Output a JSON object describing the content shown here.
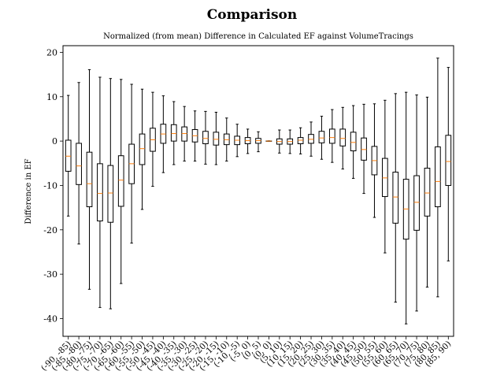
{
  "chart_data": {
    "type": "box",
    "title": "Comparison",
    "subtitle": "Normalized (from mean) Difference in Calculated EF against VolumeTracings",
    "xlabel": "",
    "ylabel": "Difference in EF",
    "ylim": [
      -44,
      21.5
    ],
    "yticks": [
      20,
      10,
      0,
      -10,
      -20,
      -30,
      -40
    ],
    "grid": false,
    "median_color": "#ff7f0e",
    "box_color": "#000000",
    "categories": [
      "(-90, -85)",
      "(-85, -80)",
      "(-80, -75)",
      "(-75, -70)",
      "(-70, -65)",
      "(-65, -60)",
      "(-60, -55)",
      "(-55, -50)",
      "(-50, -45)",
      "(-45, -40)",
      "(-40, -35)",
      "(-35, -30)",
      "(-30, -25)",
      "(-25, -20)",
      "(-20, -15)",
      "(-15, -10)",
      "(-10, -5)",
      "(-5, 0)",
      "(0, 5)",
      "(0, 0)",
      "(5, 10)",
      "(10, 15)",
      "(15, 20)",
      "(20, 25)",
      "(25, 30)",
      "(30, 35)",
      "(35, 40)",
      "(40, 45)",
      "(45, 50)",
      "(50, 55)",
      "(55, 60)",
      "(60, 65)",
      "(65, 70)",
      "(70, 75)",
      "(75, 80)",
      "(80, 85)",
      "(85, 90)"
    ],
    "boxes": [
      {
        "whislo": -16.9,
        "q1": -6.8,
        "med": -3.4,
        "q3": 0.2,
        "whishi": 10.3
      },
      {
        "whislo": -23.2,
        "q1": -9.8,
        "med": -5.6,
        "q3": -0.5,
        "whishi": 13.2
      },
      {
        "whislo": -33.4,
        "q1": -14.8,
        "med": -9.6,
        "q3": -2.5,
        "whishi": 16.1
      },
      {
        "whislo": -37.5,
        "q1": -18.0,
        "med": -11.8,
        "q3": -5.1,
        "whishi": 14.4
      },
      {
        "whislo": -37.8,
        "q1": -18.3,
        "med": -11.7,
        "q3": -5.5,
        "whishi": 14.1
      },
      {
        "whislo": -32.1,
        "q1": -14.7,
        "med": -8.8,
        "q3": -3.3,
        "whishi": 13.9
      },
      {
        "whislo": -23.0,
        "q1": -9.6,
        "med": -5.1,
        "q3": -0.7,
        "whishi": 12.8
      },
      {
        "whislo": -15.4,
        "q1": -5.3,
        "med": -1.7,
        "q3": 1.6,
        "whishi": 11.7
      },
      {
        "whislo": -10.2,
        "q1": -2.3,
        "med": 0.3,
        "q3": 2.9,
        "whishi": 11.0
      },
      {
        "whislo": -7.1,
        "q1": -0.5,
        "med": 1.6,
        "q3": 3.8,
        "whishi": 10.2
      },
      {
        "whislo": -5.3,
        "q1": 0.0,
        "med": 1.7,
        "q3": 3.7,
        "whishi": 8.9
      },
      {
        "whislo": -4.5,
        "q1": 0.0,
        "med": 1.7,
        "q3": 3.2,
        "whishi": 7.8
      },
      {
        "whislo": -4.5,
        "q1": -0.2,
        "med": 1.2,
        "q3": 2.6,
        "whishi": 6.8
      },
      {
        "whislo": -5.2,
        "q1": -0.6,
        "med": 0.6,
        "q3": 2.2,
        "whishi": 6.7
      },
      {
        "whislo": -5.3,
        "q1": -0.9,
        "med": 0.4,
        "q3": 2.0,
        "whishi": 6.5
      },
      {
        "whislo": -4.5,
        "q1": -0.8,
        "med": 0.3,
        "q3": 1.6,
        "whishi": 5.2
      },
      {
        "whislo": -3.5,
        "q1": -0.8,
        "med": 0.2,
        "q3": 1.1,
        "whishi": 3.8
      },
      {
        "whislo": -2.8,
        "q1": -0.6,
        "med": 0.1,
        "q3": 0.8,
        "whishi": 2.7
      },
      {
        "whislo": -2.4,
        "q1": -0.5,
        "med": 0.1,
        "q3": 0.6,
        "whishi": 2.1
      },
      {
        "whislo": -0.05,
        "q1": -0.03,
        "med": 0.0,
        "q3": 0.03,
        "whishi": 0.05
      },
      {
        "whislo": -2.7,
        "q1": -0.7,
        "med": -0.1,
        "q3": 0.5,
        "whishi": 2.5
      },
      {
        "whislo": -2.8,
        "q1": -0.7,
        "med": -0.1,
        "q3": 0.5,
        "whishi": 2.5
      },
      {
        "whislo": -2.9,
        "q1": -0.6,
        "med": 0.2,
        "q3": 0.8,
        "whishi": 3.0
      },
      {
        "whislo": -3.4,
        "q1": -0.5,
        "med": 0.4,
        "q3": 1.5,
        "whishi": 4.3
      },
      {
        "whislo": -4.1,
        "q1": -0.4,
        "med": 0.7,
        "q3": 2.2,
        "whishi": 5.6
      },
      {
        "whislo": -4.8,
        "q1": -0.5,
        "med": 0.8,
        "q3": 2.7,
        "whishi": 7.1
      },
      {
        "whislo": -6.3,
        "q1": -1.1,
        "med": 0.6,
        "q3": 2.7,
        "whishi": 7.6
      },
      {
        "whislo": -8.4,
        "q1": -2.2,
        "med": -0.3,
        "q3": 2.0,
        "whishi": 8.0
      },
      {
        "whislo": -11.8,
        "q1": -4.3,
        "med": -1.9,
        "q3": 0.7,
        "whishi": 8.3
      },
      {
        "whislo": -17.2,
        "q1": -7.6,
        "med": -4.4,
        "q3": -1.2,
        "whishi": 8.4
      },
      {
        "whislo": -25.2,
        "q1": -12.5,
        "med": -8.3,
        "q3": -3.9,
        "whishi": 9.2
      },
      {
        "whislo": -36.3,
        "q1": -18.5,
        "med": -12.6,
        "q3": -7.0,
        "whishi": 10.7
      },
      {
        "whislo": -41.2,
        "q1": -22.1,
        "med": -15.3,
        "q3": -8.6,
        "whishi": 11.0
      },
      {
        "whislo": -38.3,
        "q1": -20.1,
        "med": -13.8,
        "q3": -7.8,
        "whishi": 10.4
      },
      {
        "whislo": -32.9,
        "q1": -16.9,
        "med": -11.7,
        "q3": -6.1,
        "whishi": 9.9
      },
      {
        "whislo": -35.1,
        "q1": -14.8,
        "med": -9.1,
        "q3": -1.3,
        "whishi": 18.7
      },
      {
        "whislo": -27.0,
        "q1": -10.0,
        "med": -4.6,
        "q3": 1.3,
        "whishi": 16.6
      }
    ]
  }
}
